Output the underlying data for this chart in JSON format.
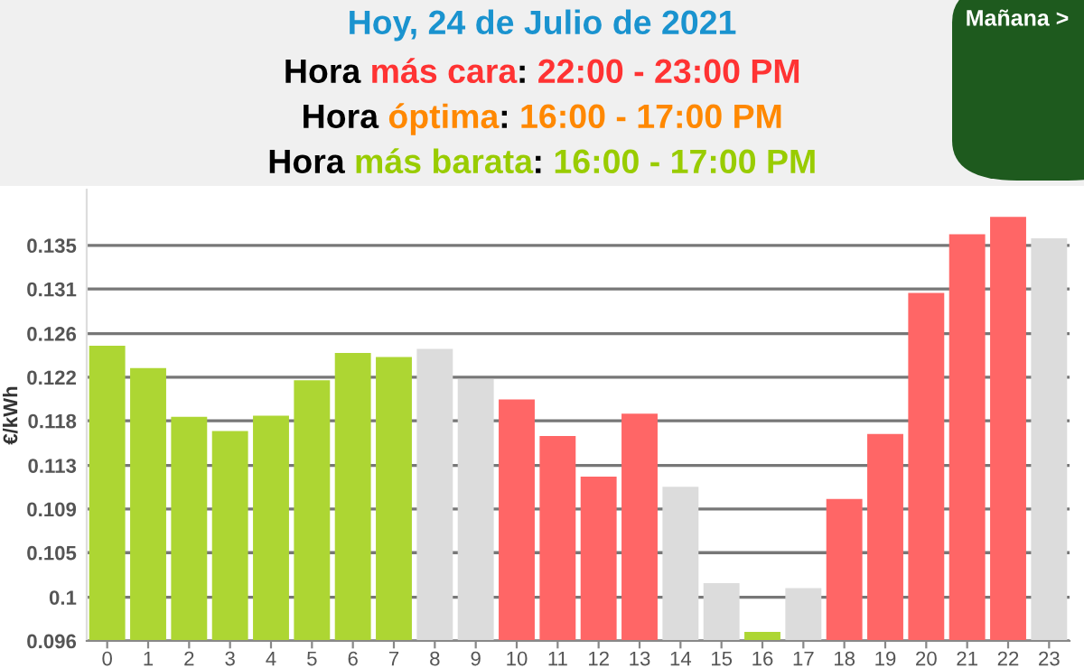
{
  "chart_data": {
    "type": "bar",
    "title": "Hoy, 24 de Julio de 2021",
    "annotations": [
      "Hora más cara: 22:00 - 23:00 PM",
      "Hora óptima: 16:00 - 17:00 PM",
      "Hora más barata: 16:00 - 17:00 PM",
      "Mañana >"
    ],
    "ylabel": "€/kWh",
    "categories": [
      "0",
      "1",
      "2",
      "3",
      "4",
      "5",
      "6",
      "7",
      "8",
      "9",
      "10",
      "11",
      "12",
      "13",
      "14",
      "15",
      "16",
      "17",
      "18",
      "19",
      "20",
      "21",
      "22",
      "23"
    ],
    "values": [
      0.1251,
      0.1229,
      0.1181,
      0.1167,
      0.1182,
      0.1217,
      0.1244,
      0.124,
      0.1248,
      0.1218,
      0.1198,
      0.1162,
      0.1122,
      0.1184,
      0.1112,
      0.1017,
      0.0969,
      0.1012,
      0.11,
      0.1164,
      0.1303,
      0.1361,
      0.1378,
      0.1357
    ],
    "colors": [
      "#add633",
      "#add633",
      "#add633",
      "#add633",
      "#add633",
      "#add633",
      "#add633",
      "#add633",
      "#dcdcdc",
      "#dcdcdc",
      "#ff6666",
      "#ff6666",
      "#ff6666",
      "#ff6666",
      "#dcdcdc",
      "#dcdcdc",
      "#add633",
      "#dcdcdc",
      "#ff6666",
      "#ff6666",
      "#ff6666",
      "#ff6666",
      "#ff6666",
      "#dcdcdc"
    ],
    "ylim": [
      0.096,
      0.1405
    ],
    "yticks": [
      {
        "value": 0.096,
        "label": "0.096"
      },
      {
        "value": 0.1003,
        "label": "0.1"
      },
      {
        "value": 0.1047,
        "label": "0.105"
      },
      {
        "value": 0.109,
        "label": "0.109"
      },
      {
        "value": 0.1133,
        "label": "0.113"
      },
      {
        "value": 0.1177,
        "label": "0.118"
      },
      {
        "value": 0.122,
        "label": "0.122"
      },
      {
        "value": 0.1263,
        "label": "0.126"
      },
      {
        "value": 0.1307,
        "label": "0.131"
      },
      {
        "value": 0.135,
        "label": "0.135"
      }
    ],
    "grid": "y"
  }
}
